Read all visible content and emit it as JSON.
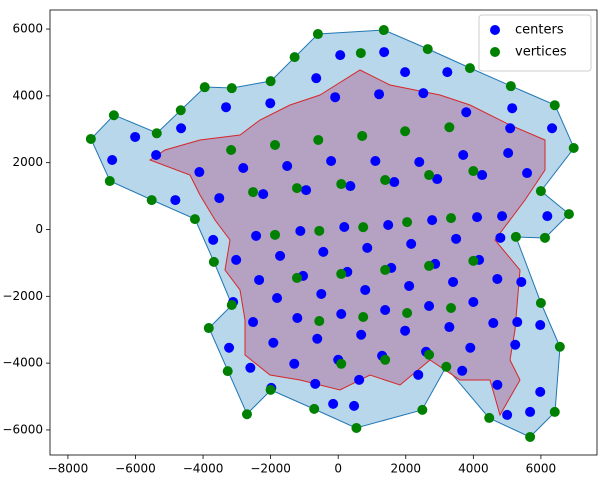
{
  "chart_data": {
    "type": "scatter",
    "xlim": [
      -8530,
      7660
    ],
    "ylim": [
      -6750,
      6570
    ],
    "xticks": [
      {
        "value": -8000,
        "label": "−8000"
      },
      {
        "value": -6000,
        "label": "−6000"
      },
      {
        "value": -4000,
        "label": "−4000"
      },
      {
        "value": -2000,
        "label": "−2000"
      },
      0,
      2000,
      4000,
      6000
    ],
    "yticks": [
      {
        "value": -6000,
        "label": "−6000"
      },
      {
        "value": -4000,
        "label": "−4000"
      },
      {
        "value": -2000,
        "label": "−2000"
      },
      0,
      2000,
      4000,
      6000
    ],
    "legend": "upper right",
    "series": [
      {
        "name": "centers",
        "color": "#0000ff",
        "x": [
          60,
          1360,
          -650,
          1980,
          3230,
          -2010,
          -3320,
          -90,
          1210,
          2520,
          3790,
          5150,
          6330,
          5090,
          -4650,
          -6010,
          -6690,
          -5390,
          -4110,
          -2810,
          -1510,
          -210,
          1100,
          2400,
          3700,
          5030,
          5590,
          -4820,
          -3520,
          -2220,
          -950,
          360,
          1660,
          2930,
          4260,
          6190,
          4850,
          -3700,
          -2430,
          -1120,
          180,
          1480,
          2780,
          4110,
          -3020,
          -1720,
          -440,
          860,
          2160,
          3490,
          4800,
          -2340,
          -1040,
          270,
          1570,
          2870,
          4170,
          5420,
          -3110,
          -1810,
          -500,
          800,
          2100,
          3400,
          4710,
          5980,
          -2520,
          -1210,
          90,
          1390,
          2690,
          4000,
          5300,
          -3230,
          -1920,
          -620,
          680,
          1980,
          3290,
          4590,
          5240,
          -2600,
          -1300,
          0,
          1300,
          2600,
          3910,
          -1980,
          -680,
          620,
          2370,
          3670,
          4710,
          5980,
          -150,
          470,
          5000,
          5680
        ],
        "y": [
          5220,
          5310,
          4530,
          4710,
          4710,
          3780,
          3660,
          3960,
          4050,
          4080,
          3510,
          3630,
          3030,
          3030,
          3030,
          2770,
          2080,
          2230,
          1720,
          1840,
          1900,
          2050,
          2050,
          2020,
          2230,
          2290,
          1690,
          880,
          940,
          1060,
          1180,
          1300,
          1420,
          1510,
          1630,
          400,
          400,
          -310,
          -190,
          -45,
          75,
          135,
          280,
          370,
          -910,
          -790,
          -670,
          -550,
          -430,
          -280,
          -250,
          -1510,
          -1390,
          -1270,
          -1150,
          -1030,
          -910,
          -1570,
          -2170,
          -2050,
          -1930,
          -1810,
          -1690,
          -1570,
          -1480,
          -2860,
          -2770,
          -2650,
          -2530,
          -2410,
          -2290,
          -2170,
          -2770,
          -3540,
          -3390,
          -3270,
          -3150,
          -3030,
          -2920,
          -2800,
          -3450,
          -4140,
          -4020,
          -3900,
          -3780,
          -3660,
          -3540,
          -4740,
          -4620,
          -4500,
          -4350,
          -4230,
          -4650,
          -4860,
          -5220,
          -5280,
          -5550,
          -5460
        ]
      },
      {
        "name": "vertices",
        "color": "#008000",
        "x": [
          -600,
          1350,
          2650,
          3900,
          670,
          -1290,
          -2000,
          5110,
          6410,
          6970,
          6000,
          6830,
          6120,
          -3150,
          -3950,
          -4660,
          -5370,
          -6640,
          -7320,
          -6760,
          -5520,
          -4240,
          -3680,
          -3150,
          -3830,
          -3270,
          -2700,
          -2000,
          -710,
          540,
          2490,
          3200,
          4470,
          5680,
          6410,
          6560,
          6000,
          5260,
          -3170,
          -1870,
          -590,
          710,
          1980,
          3290,
          -2520,
          -1220,
          90,
          1390,
          2690,
          4000,
          -1870,
          -560,
          740,
          2040,
          3340,
          -1220,
          90,
          1390,
          2690,
          4000,
          -560,
          740,
          2040,
          3340,
          90,
          1390,
          2690
        ],
        "y": [
          5850,
          5970,
          5400,
          4830,
          5280,
          5160,
          4440,
          4290,
          3720,
          2440,
          1150,
          460,
          -250,
          4230,
          4260,
          3570,
          2880,
          3420,
          2710,
          1450,
          880,
          310,
          -970,
          -2260,
          -2950,
          -4240,
          -5530,
          -4800,
          -5370,
          -5940,
          -5400,
          -4110,
          -5640,
          -6210,
          -5460,
          -3510,
          -2200,
          -220,
          2380,
          2530,
          2680,
          2800,
          2940,
          3060,
          1120,
          1240,
          1360,
          1480,
          1630,
          1750,
          -160,
          -40,
          70,
          220,
          340,
          -1450,
          -1330,
          -1210,
          -1090,
          -940,
          -2740,
          -2620,
          -2500,
          -2350,
          -4020,
          -3900,
          -3750
        ]
      }
    ]
  }
}
